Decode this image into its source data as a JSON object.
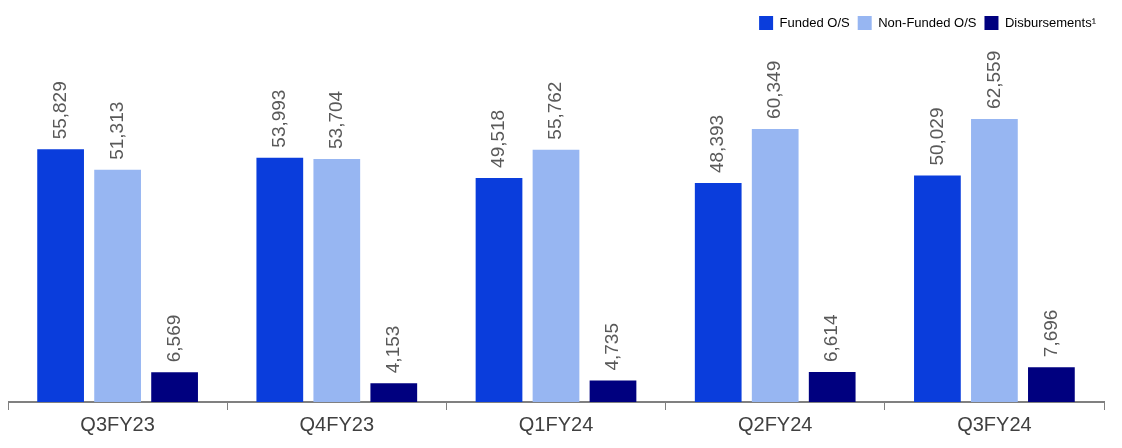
{
  "chart_data": {
    "type": "bar",
    "categories": [
      "Q3FY23",
      "Q4FY23",
      "Q1FY24",
      "Q2FY24",
      "Q3FY24"
    ],
    "series": [
      {
        "name": "Funded O/S",
        "color": "#0a3ddc",
        "values": [
          55829,
          53993,
          49518,
          48393,
          50029
        ],
        "value_labels": [
          "55,829",
          "53,993",
          "49,518",
          "48,393",
          "50,029"
        ]
      },
      {
        "name": "Non-Funded O/S",
        "color": "#97b6f2",
        "values": [
          51313,
          53704,
          55762,
          60349,
          62559
        ],
        "value_labels": [
          "51,313",
          "53,704",
          "55,762",
          "60,349",
          "62,559"
        ]
      },
      {
        "name": "Disbursements¹",
        "color": "#00007f",
        "values": [
          6569,
          4153,
          4735,
          6614,
          7696
        ],
        "value_labels": [
          "6,569",
          "4,153",
          "4,735",
          "6,614",
          "7,696"
        ]
      }
    ],
    "legend": "top right",
    "tick_labels": "x"
  }
}
